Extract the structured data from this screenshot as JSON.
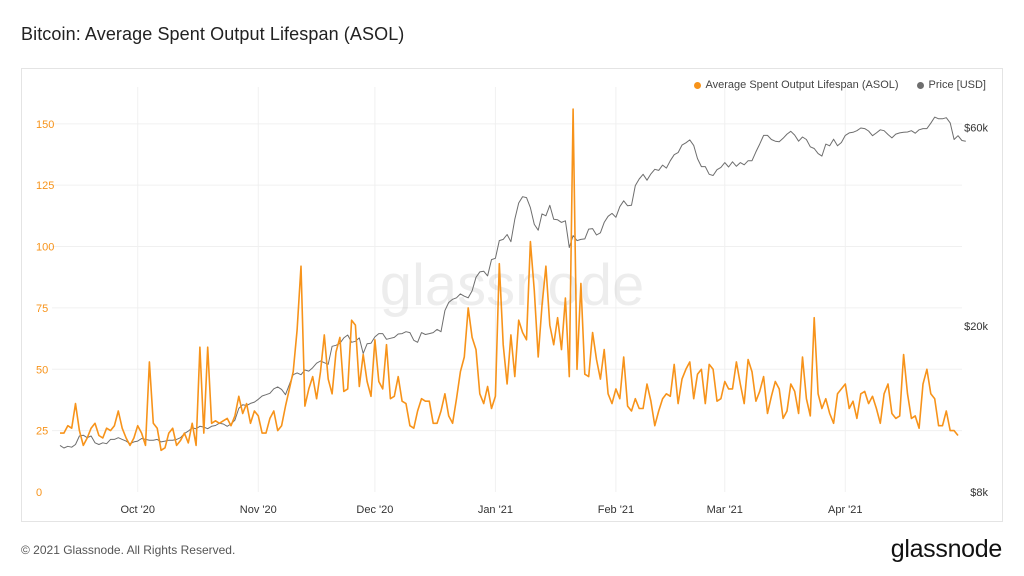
{
  "title": "Bitcoin: Average Spent Output Lifespan (ASOL)",
  "footer": {
    "copyright": "© 2021 Glassnode. All Rights Reserved.",
    "logo": "glassnode"
  },
  "watermark": "glassnode",
  "colors": {
    "asol": "#f7931a",
    "price": "#6e6e6e",
    "grid": "#f0f0f0",
    "left_axis_text": "#f7931a",
    "right_axis_text": "#333333"
  },
  "chart_data": {
    "type": "line",
    "legend": [
      "Average Spent Output Lifespan (ASOL)",
      "Price [USD]"
    ],
    "legend_position": "top-right",
    "grid": true,
    "x_ticks": [
      "Oct '20",
      "Nov '20",
      "Dec '20",
      "Jan '21",
      "Feb '21",
      "Mar '21",
      "Apr '21"
    ],
    "x_tick_days": [
      20,
      51,
      81,
      112,
      143,
      171,
      202
    ],
    "y_left": {
      "ticks": [
        0,
        25,
        50,
        75,
        100,
        125,
        150
      ],
      "range": [
        0,
        165
      ]
    },
    "y_right": {
      "ticks": [
        "$8k",
        "$20k",
        "$60k"
      ],
      "tick_values": [
        8000,
        20000,
        60000
      ],
      "scale": "log",
      "range": [
        8000,
        75000
      ]
    },
    "series": [
      {
        "name": "Average Spent Output Lifespan (ASOL)",
        "axis": "left",
        "start_date": "2020-09-11",
        "values": [
          24,
          24,
          27,
          26,
          36,
          25,
          19,
          22,
          26,
          28,
          23,
          22,
          26,
          25,
          27,
          33,
          26,
          22,
          19,
          22,
          27,
          24,
          19,
          53,
          28,
          26,
          17,
          18,
          24,
          26,
          19,
          21,
          24,
          20,
          28,
          19,
          59,
          24,
          59,
          28,
          29,
          28,
          29,
          30,
          27,
          31,
          39,
          32,
          36,
          28,
          33,
          31,
          24,
          24,
          30,
          33,
          25,
          27,
          35,
          42,
          49,
          66,
          92,
          35,
          42,
          47,
          38,
          49,
          64,
          46,
          40,
          57,
          63,
          41,
          42,
          70,
          68,
          43,
          56,
          45,
          39,
          62,
          45,
          42,
          60,
          38,
          39,
          47,
          37,
          36,
          27,
          26,
          33,
          38,
          37,
          37,
          28,
          28,
          33,
          40,
          31,
          28,
          38,
          49,
          55,
          75,
          63,
          58,
          40,
          36,
          43,
          34,
          39,
          93,
          60,
          44,
          64,
          47,
          70,
          65,
          62,
          102,
          82,
          55,
          76,
          92,
          68,
          60,
          71,
          58,
          79,
          47,
          156,
          50,
          85,
          48,
          47,
          65,
          54,
          46,
          58,
          40,
          36,
          42,
          38,
          55,
          35,
          33,
          38,
          34,
          34,
          44,
          37,
          27,
          33,
          38,
          40,
          39,
          52,
          36,
          46,
          50,
          53,
          38,
          48,
          50,
          36,
          52,
          50,
          37,
          38,
          45,
          42,
          42,
          53,
          44,
          36,
          54,
          49,
          37,
          41,
          47,
          32,
          39,
          45,
          42,
          30,
          33,
          44,
          41,
          32,
          55,
          38,
          31,
          71,
          40,
          34,
          38,
          32,
          28,
          40,
          42,
          44,
          34,
          37,
          30,
          40,
          41,
          36,
          39,
          34,
          28,
          40,
          44,
          32,
          30,
          31,
          56,
          40,
          30,
          31,
          26,
          44,
          50,
          40,
          38,
          27,
          27,
          33,
          25,
          25,
          23
        ]
      },
      {
        "name": "Price [USD]",
        "axis": "right",
        "start_date": "2020-09-11",
        "values": [
          10350,
          10200,
          10300,
          10250,
          10400,
          10900,
          10950,
          10800,
          10900,
          10500,
          10400,
          10500,
          10450,
          10700,
          10700,
          10800,
          10700,
          10600,
          10450,
          10550,
          10600,
          10750,
          10700,
          10650,
          10650,
          10700,
          10550,
          10600,
          10650,
          10650,
          10700,
          10800,
          11050,
          11200,
          11400,
          11350,
          11500,
          11450,
          11350,
          11500,
          11550,
          11700,
          11650,
          11500,
          11650,
          11900,
          12700,
          12950,
          12900,
          13050,
          13150,
          13350,
          13600,
          13700,
          13800,
          14150,
          14300,
          14100,
          13700,
          14500,
          15300,
          15450,
          15300,
          15700,
          15600,
          15900,
          16300,
          16500,
          16350,
          16200,
          17900,
          18000,
          18200,
          18750,
          19050,
          18300,
          18400,
          18750,
          17200,
          18150,
          18200,
          18850,
          19200,
          19200,
          18600,
          18700,
          18800,
          19150,
          19200,
          19400,
          19300,
          18500,
          18300,
          19300,
          19100,
          19200,
          19300,
          19650,
          19400,
          21800,
          22800,
          23200,
          23400,
          23900,
          23600,
          23400,
          24300,
          26200,
          27000,
          27100,
          26400,
          28900,
          29100,
          32100,
          32300,
          33200,
          31900,
          36100,
          39500,
          40900,
          40700,
          38500,
          35100,
          34000,
          37200,
          36800,
          39000,
          36100,
          36000,
          35500,
          35800,
          30900,
          33000,
          32100,
          32300,
          32400,
          34200,
          34300,
          33100,
          33500,
          35500,
          36700,
          37300,
          36500,
          38700,
          40000,
          38900,
          39000,
          43500,
          45100,
          46300,
          44800,
          46400,
          47600,
          47300,
          48700,
          47900,
          49900,
          51600,
          52200,
          54400,
          55100,
          56000,
          54300,
          50500,
          48300,
          48300,
          46300,
          46000,
          47500,
          48100,
          49400,
          48200,
          49600,
          48400,
          49400,
          48800,
          49900,
          49900,
          52400,
          54700,
          57400,
          57400,
          56100,
          55600,
          55400,
          56500,
          57800,
          58700,
          57500,
          55600,
          56900,
          56100,
          53900,
          53400,
          51900,
          51200,
          54700,
          54200,
          56200,
          54200,
          55200,
          57400,
          58200,
          58400,
          58900,
          59800,
          59600,
          58800,
          57300,
          58200,
          59200,
          58900,
          57700,
          56600,
          57800,
          58200,
          58400,
          58500,
          58900,
          58100,
          59200,
          59600,
          59600,
          61400,
          63500,
          62900,
          62900,
          63300,
          61500,
          56100,
          57300,
          55800,
          55600
        ]
      }
    ]
  }
}
